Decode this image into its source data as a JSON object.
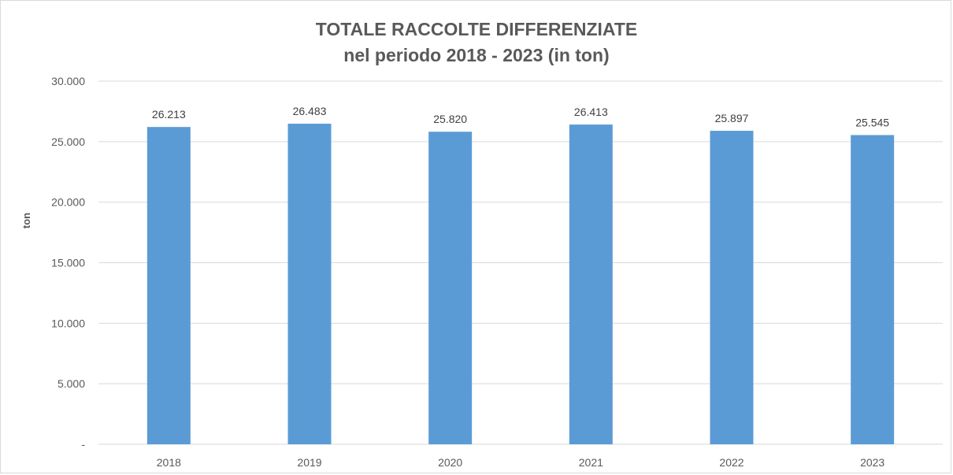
{
  "chart_data": {
    "type": "bar",
    "title_line1": "TOTALE RACCOLTE DIFFERENZIATE",
    "title_line2": "nel periodo 2018 - 2023 (in ton)",
    "xlabel": "",
    "ylabel": "ton",
    "categories": [
      "2018",
      "2019",
      "2020",
      "2021",
      "2022",
      "2023"
    ],
    "values": [
      26213,
      26483,
      25820,
      26413,
      25897,
      25545
    ],
    "value_labels": [
      "26.213",
      "26.483",
      "25.820",
      "26.413",
      "25.897",
      "25.545"
    ],
    "ylim": [
      0,
      30000
    ],
    "yticks": [
      0,
      5000,
      10000,
      15000,
      20000,
      25000,
      30000
    ],
    "ytick_labels": [
      "-",
      "5.000",
      "10.000",
      "15.000",
      "20.000",
      "25.000",
      "30.000"
    ],
    "grid": true,
    "legend": "none",
    "bar_color": "#5b9bd5",
    "grid_color": "#d9d9d9"
  }
}
